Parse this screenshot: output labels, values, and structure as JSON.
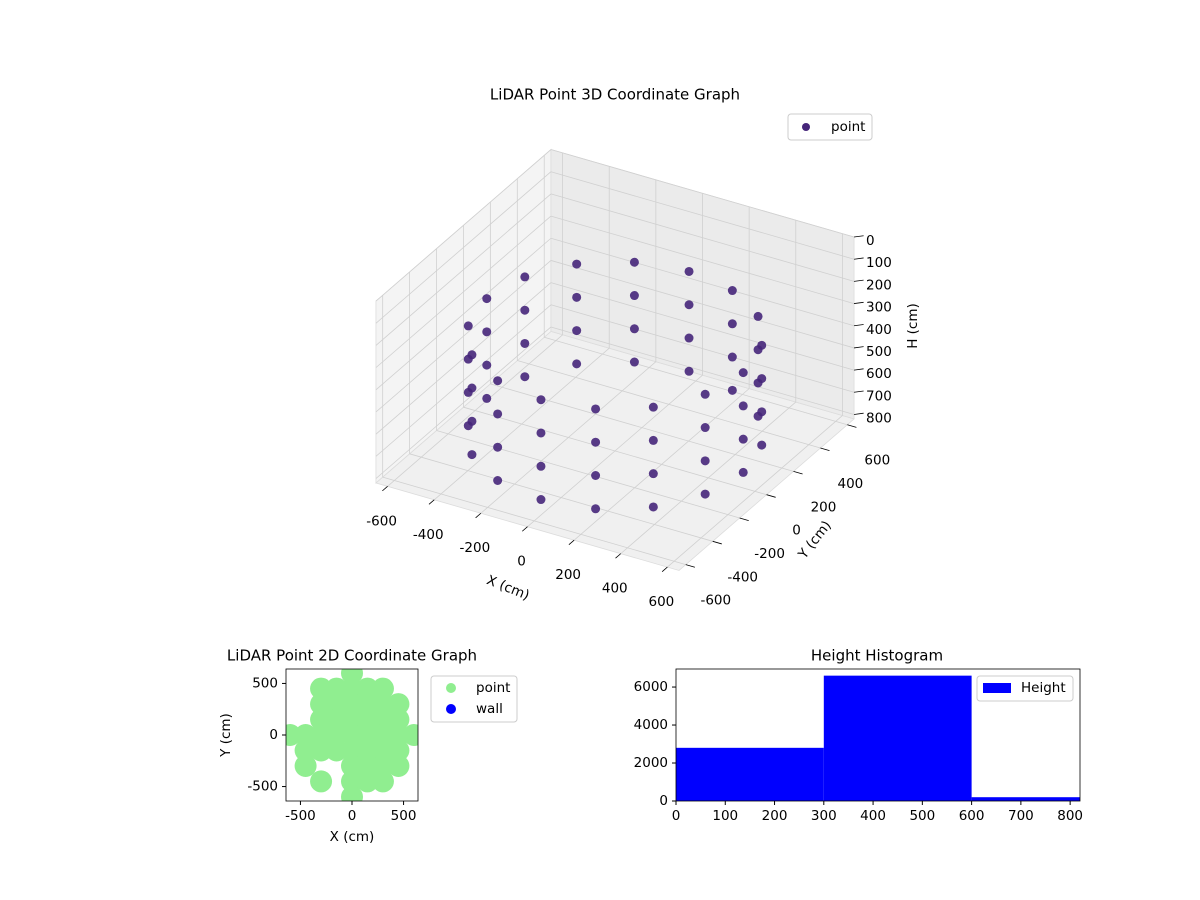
{
  "chart_data": [
    {
      "type": "scatter3d",
      "title": "LiDAR Point 3D Coordinate Graph",
      "xlabel": "X (cm)",
      "ylabel": "Y (cm)",
      "zlabel": "H (cm)",
      "xlim": [
        -650,
        650
      ],
      "ylim": [
        -650,
        650
      ],
      "zlim": [
        0,
        820
      ],
      "z_inverted": true,
      "xticks": [
        -600,
        -400,
        -200,
        0,
        200,
        400,
        600
      ],
      "yticks": [
        -600,
        -400,
        -200,
        0,
        200,
        400,
        600
      ],
      "zticks": [
        0,
        100,
        200,
        300,
        400,
        500,
        600,
        700,
        800
      ],
      "grid": true,
      "legend": "upper right",
      "series": [
        {
          "name": "point",
          "color": "#46267a",
          "x": [
            550,
            508,
            389,
            210,
            0,
            -210,
            -389,
            -508,
            -550,
            -508,
            -389,
            -210,
            0,
            210,
            389,
            508,
            550,
            508,
            389,
            210,
            0,
            -210,
            -389,
            -508,
            -550,
            -508,
            -389,
            -210,
            0,
            210,
            389,
            508,
            550,
            508,
            389,
            210,
            0,
            -210,
            -389,
            -508,
            -550,
            -508,
            -389,
            -210,
            0,
            210,
            389,
            508,
            550,
            508,
            389,
            210,
            0,
            -210,
            -389,
            -508,
            -550,
            -508,
            -389,
            -210,
            0,
            210,
            389,
            508
          ],
          "y": [
            0,
            210,
            389,
            508,
            550,
            508,
            389,
            210,
            0,
            -210,
            -389,
            -508,
            -550,
            -508,
            -389,
            -210,
            0,
            210,
            389,
            508,
            550,
            508,
            389,
            210,
            0,
            -210,
            -389,
            -508,
            -550,
            -508,
            -389,
            -210,
            0,
            210,
            389,
            508,
            550,
            508,
            389,
            210,
            0,
            -210,
            -389,
            -508,
            -550,
            -508,
            -389,
            -210,
            0,
            210,
            389,
            508,
            550,
            508,
            389,
            210,
            0,
            -210,
            -389,
            -508,
            -550,
            -508,
            -389,
            -210
          ],
          "z": [
            300,
            300,
            300,
            300,
            300,
            300,
            300,
            300,
            300,
            300,
            300,
            300,
            300,
            300,
            300,
            300,
            450,
            450,
            450,
            450,
            450,
            450,
            450,
            450,
            450,
            450,
            450,
            450,
            450,
            450,
            450,
            450,
            600,
            600,
            600,
            600,
            600,
            600,
            600,
            600,
            600,
            600,
            600,
            600,
            600,
            600,
            600,
            600,
            750,
            750,
            750,
            750,
            750,
            750,
            750,
            750,
            750,
            750,
            750,
            750,
            750,
            750,
            750,
            750
          ]
        }
      ]
    },
    {
      "type": "scatter",
      "title": "LiDAR Point 2D Coordinate Graph",
      "xlabel": "X (cm)",
      "ylabel": "Y (cm)",
      "xlim": [
        -640,
        640
      ],
      "ylim": [
        -640,
        640
      ],
      "xticks": [
        -500,
        0,
        500
      ],
      "yticks": [
        -500,
        0,
        500
      ],
      "legend": "outside right",
      "series": [
        {
          "name": "point",
          "color": "#90ee90",
          "x": [
            0,
            -300,
            -150,
            0,
            150,
            300,
            -300,
            -150,
            0,
            150,
            300,
            450,
            -300,
            -150,
            0,
            150,
            300,
            450,
            -600,
            -450,
            -300,
            -150,
            0,
            150,
            300,
            450,
            600,
            -450,
            -300,
            -150,
            0,
            150,
            300,
            450,
            -450,
            0,
            150,
            300,
            450,
            -300,
            0,
            150,
            300,
            0
          ],
          "y": [
            600,
            450,
            450,
            450,
            450,
            450,
            300,
            300,
            300,
            300,
            300,
            300,
            150,
            150,
            150,
            150,
            150,
            150,
            0,
            0,
            0,
            0,
            0,
            0,
            0,
            0,
            0,
            -150,
            -150,
            -150,
            -150,
            -150,
            -150,
            -150,
            -300,
            -300,
            -300,
            -300,
            -300,
            -450,
            -450,
            -450,
            -450,
            -600
          ]
        },
        {
          "name": "wall",
          "color": "#0000ff",
          "x": [],
          "y": []
        }
      ]
    },
    {
      "type": "histogram",
      "title": "Height Histogram",
      "name": "Height",
      "color": "#0000ff",
      "bins": [
        0,
        300,
        600,
        820
      ],
      "values": [
        2800,
        6600,
        200
      ],
      "xlim": [
        0,
        820
      ],
      "ylim": [
        0,
        6950
      ],
      "xticks": [
        0,
        100,
        200,
        300,
        400,
        500,
        600,
        700,
        800
      ],
      "yticks": [
        0,
        2000,
        4000,
        6000
      ],
      "legend": "upper right"
    }
  ]
}
